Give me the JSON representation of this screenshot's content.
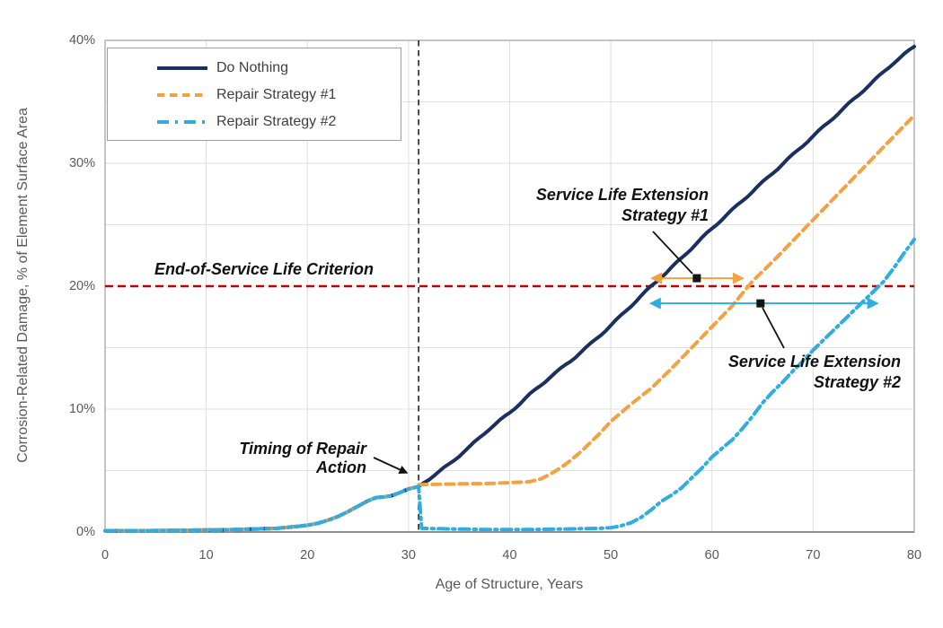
{
  "chart_data": {
    "type": "line",
    "xlabel": "Age of Structure, Years",
    "ylabel": "Corrosion-Related Damage, % of Element Surface Area",
    "xlim": [
      0,
      80
    ],
    "ylim": [
      0,
      40
    ],
    "x_ticks": [
      0,
      10,
      20,
      30,
      40,
      50,
      60,
      70,
      80
    ],
    "y_ticks": [
      0,
      10,
      20,
      30,
      40
    ],
    "y_tick_suffix": "%",
    "grid": {
      "horizontal_step_percent": 5,
      "vertical_step_years": 10
    },
    "legend_position": "top-left",
    "common_segment": {
      "description": "All three strategies identical from age 0 until repair action at age 31",
      "points": [
        [
          0,
          0.1
        ],
        [
          3,
          0.1
        ],
        [
          6,
          0.12
        ],
        [
          9,
          0.15
        ],
        [
          12,
          0.18
        ],
        [
          15,
          0.25
        ],
        [
          17,
          0.3
        ],
        [
          19,
          0.45
        ],
        [
          20,
          0.55
        ],
        [
          21,
          0.7
        ],
        [
          22,
          0.95
        ],
        [
          23,
          1.25
        ],
        [
          24,
          1.65
        ],
        [
          25,
          2.1
        ],
        [
          26,
          2.55
        ],
        [
          26.8,
          2.8
        ],
        [
          27.5,
          2.85
        ],
        [
          28.3,
          2.95
        ],
        [
          29,
          3.15
        ],
        [
          30,
          3.5
        ],
        [
          31,
          3.7
        ]
      ]
    },
    "series": [
      {
        "name": "Do Nothing",
        "color": "#1B3060",
        "dash": "solid",
        "continues_common": true,
        "points": [
          [
            32,
            4.3
          ],
          [
            34,
            5.5
          ],
          [
            36,
            6.9
          ],
          [
            38,
            8.4
          ],
          [
            40,
            9.7
          ],
          [
            42,
            11.2
          ],
          [
            44,
            12.6
          ],
          [
            46,
            13.9
          ],
          [
            48,
            15.3
          ],
          [
            50,
            16.8
          ],
          [
            52,
            18.4
          ],
          [
            54,
            20
          ],
          [
            56,
            21.5
          ],
          [
            58,
            23.1
          ],
          [
            60,
            24.7
          ],
          [
            62,
            26.2
          ],
          [
            64,
            27.7
          ],
          [
            66,
            29.2
          ],
          [
            68,
            30.7
          ],
          [
            70,
            32.2
          ],
          [
            72,
            33.7
          ],
          [
            74,
            35.2
          ],
          [
            76,
            36.7
          ],
          [
            78,
            38.2
          ],
          [
            80,
            39.5
          ]
        ]
      },
      {
        "name": "Repair Strategy #1",
        "color": "#F4A142",
        "dash": "dashed",
        "continues_common": true,
        "points": [
          [
            31,
            3.85
          ],
          [
            34,
            3.9
          ],
          [
            38,
            3.95
          ],
          [
            41,
            4.05
          ],
          [
            42,
            4.1
          ],
          [
            43,
            4.3
          ],
          [
            44,
            4.7
          ],
          [
            45,
            5.2
          ],
          [
            46,
            5.8
          ],
          [
            47,
            6.5
          ],
          [
            48,
            7.3
          ],
          [
            49,
            8.1
          ],
          [
            50,
            9
          ],
          [
            52,
            10.4
          ],
          [
            54,
            11.7
          ],
          [
            56,
            13.3
          ],
          [
            58,
            15
          ],
          [
            60,
            16.7
          ],
          [
            62,
            18.4
          ],
          [
            63.5,
            19.9
          ],
          [
            64,
            20.4
          ],
          [
            66,
            22
          ],
          [
            68,
            23.7
          ],
          [
            70,
            25.4
          ],
          [
            72,
            27.1
          ],
          [
            74,
            28.8
          ],
          [
            76,
            30.5
          ],
          [
            78,
            32.2
          ],
          [
            80,
            33.9
          ]
        ]
      },
      {
        "name": "Repair Strategy #2",
        "color": "#2FADE3",
        "dash": "dash-dot",
        "continues_common": true,
        "points": [
          [
            31,
            3.7
          ],
          [
            31.3,
            0.3
          ],
          [
            34,
            0.25
          ],
          [
            38,
            0.2
          ],
          [
            42,
            0.2
          ],
          [
            46,
            0.25
          ],
          [
            49,
            0.3
          ],
          [
            50,
            0.35
          ],
          [
            51,
            0.5
          ],
          [
            52,
            0.75
          ],
          [
            53,
            1.2
          ],
          [
            54,
            1.8
          ],
          [
            55,
            2.5
          ],
          [
            56,
            3
          ],
          [
            57,
            3.6
          ],
          [
            58,
            4.4
          ],
          [
            59,
            5.2
          ],
          [
            60,
            6.1
          ],
          [
            61,
            6.8
          ],
          [
            62,
            7.5
          ],
          [
            63,
            8.4
          ],
          [
            64,
            9.4
          ],
          [
            65,
            10.5
          ],
          [
            66,
            11.4
          ],
          [
            67,
            12.2
          ],
          [
            68,
            13.1
          ],
          [
            69,
            13.9
          ],
          [
            70,
            14.8
          ],
          [
            71,
            15.6
          ],
          [
            72,
            16.4
          ],
          [
            73,
            17.2
          ],
          [
            74,
            18
          ],
          [
            75,
            18.8
          ],
          [
            76,
            19.6
          ],
          [
            77,
            20.4
          ],
          [
            78,
            21.5
          ],
          [
            79,
            22.7
          ],
          [
            80,
            23.8
          ]
        ]
      }
    ],
    "reference_lines": [
      {
        "axis": "y",
        "value": 20,
        "color": "#C00000",
        "dash": "dashed",
        "label": "End-of-Service Life Criterion"
      },
      {
        "axis": "x",
        "value": 31,
        "color": "#222222",
        "dash": "dashed",
        "label": "Timing of Repair Action"
      }
    ],
    "arrows": [
      {
        "name": "service-life-extension-1",
        "label": "Service Life Extension Strategy #1",
        "y_percent": 20.65,
        "x_from_years": 53.8,
        "x_to_years": 63.3,
        "color": "#F4A142",
        "marker_year": 58.5
      },
      {
        "name": "service-life-extension-2",
        "label": "Service Life Extension Strategy #2",
        "y_percent": 18.6,
        "x_from_years": 53.7,
        "x_to_years": 76.6,
        "color": "#2FADE3",
        "marker_year": 64.8
      }
    ]
  },
  "annotations": {
    "end_of_service": "End-of-Service Life Criterion",
    "timing_line1": "Timing of Repair",
    "timing_line2": "Action",
    "sle1_line1": "Service Life Extension",
    "sle1_line2": "Strategy #1",
    "sle2_line1": "Service Life Extension",
    "sle2_line2": "Strategy #2"
  }
}
